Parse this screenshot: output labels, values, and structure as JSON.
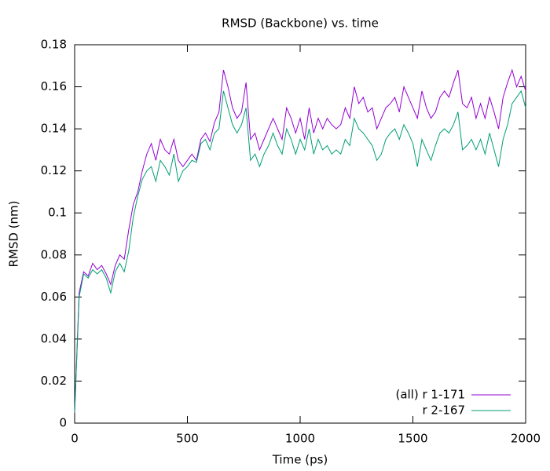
{
  "chart_data": {
    "type": "line",
    "title": "RMSD (Backbone) vs. time",
    "x_label": "Time (ps)",
    "y_label": "RMSD (nm)",
    "legend": "bottom right",
    "grid": false,
    "xlim": [
      0,
      2000
    ],
    "xticks": [
      0,
      500,
      1000,
      1500,
      2000
    ],
    "ylim": [
      0,
      0.18
    ],
    "yticks": [
      0,
      0.02,
      0.04,
      0.06,
      0.08,
      0.1,
      0.12,
      0.14,
      0.16,
      0.18
    ],
    "x": [
      0,
      20,
      40,
      60,
      80,
      100,
      120,
      140,
      160,
      180,
      200,
      220,
      240,
      260,
      280,
      300,
      320,
      340,
      360,
      380,
      400,
      420,
      440,
      460,
      480,
      500,
      520,
      540,
      560,
      580,
      600,
      620,
      640,
      660,
      680,
      700,
      720,
      740,
      760,
      780,
      800,
      820,
      840,
      860,
      880,
      900,
      920,
      940,
      960,
      980,
      1000,
      1020,
      1040,
      1060,
      1080,
      1100,
      1120,
      1140,
      1160,
      1180,
      1200,
      1220,
      1240,
      1260,
      1280,
      1300,
      1320,
      1340,
      1360,
      1380,
      1400,
      1420,
      1440,
      1460,
      1480,
      1500,
      1520,
      1540,
      1560,
      1580,
      1600,
      1620,
      1640,
      1660,
      1680,
      1700,
      1720,
      1740,
      1760,
      1780,
      1800,
      1820,
      1840,
      1860,
      1880,
      1900,
      1920,
      1940,
      1960,
      1980,
      2000
    ],
    "series": [
      {
        "name": "(all) r 1-171",
        "color": "#9400d3",
        "values": [
          0.005,
          0.062,
          0.072,
          0.07,
          0.076,
          0.073,
          0.075,
          0.071,
          0.066,
          0.075,
          0.08,
          0.078,
          0.092,
          0.104,
          0.11,
          0.12,
          0.128,
          0.133,
          0.125,
          0.135,
          0.13,
          0.128,
          0.135,
          0.125,
          0.122,
          0.125,
          0.128,
          0.125,
          0.135,
          0.138,
          0.134,
          0.143,
          0.148,
          0.168,
          0.16,
          0.15,
          0.145,
          0.148,
          0.162,
          0.135,
          0.138,
          0.13,
          0.135,
          0.14,
          0.145,
          0.14,
          0.135,
          0.15,
          0.145,
          0.138,
          0.145,
          0.135,
          0.15,
          0.138,
          0.145,
          0.14,
          0.145,
          0.142,
          0.14,
          0.142,
          0.15,
          0.145,
          0.16,
          0.152,
          0.155,
          0.148,
          0.15,
          0.14,
          0.145,
          0.15,
          0.152,
          0.155,
          0.148,
          0.16,
          0.155,
          0.15,
          0.145,
          0.158,
          0.15,
          0.145,
          0.148,
          0.155,
          0.158,
          0.155,
          0.162,
          0.168,
          0.152,
          0.15,
          0.155,
          0.145,
          0.152,
          0.145,
          0.155,
          0.148,
          0.14,
          0.155,
          0.162,
          0.168,
          0.16,
          0.165,
          0.158
        ]
      },
      {
        "name": "r 2-167",
        "color": "#009e73",
        "values": [
          0.005,
          0.06,
          0.071,
          0.069,
          0.073,
          0.071,
          0.073,
          0.069,
          0.062,
          0.072,
          0.076,
          0.072,
          0.082,
          0.098,
          0.108,
          0.116,
          0.12,
          0.122,
          0.115,
          0.125,
          0.122,
          0.118,
          0.128,
          0.115,
          0.12,
          0.122,
          0.125,
          0.124,
          0.133,
          0.135,
          0.13,
          0.138,
          0.14,
          0.158,
          0.15,
          0.142,
          0.138,
          0.142,
          0.15,
          0.125,
          0.128,
          0.122,
          0.128,
          0.132,
          0.138,
          0.132,
          0.128,
          0.14,
          0.135,
          0.128,
          0.135,
          0.13,
          0.14,
          0.128,
          0.135,
          0.13,
          0.132,
          0.128,
          0.13,
          0.128,
          0.135,
          0.132,
          0.145,
          0.14,
          0.138,
          0.135,
          0.132,
          0.125,
          0.128,
          0.135,
          0.138,
          0.14,
          0.135,
          0.142,
          0.138,
          0.133,
          0.122,
          0.135,
          0.13,
          0.125,
          0.132,
          0.138,
          0.14,
          0.138,
          0.142,
          0.148,
          0.13,
          0.132,
          0.135,
          0.13,
          0.135,
          0.128,
          0.138,
          0.13,
          0.122,
          0.135,
          0.142,
          0.152,
          0.155,
          0.158,
          0.15
        ]
      }
    ]
  }
}
